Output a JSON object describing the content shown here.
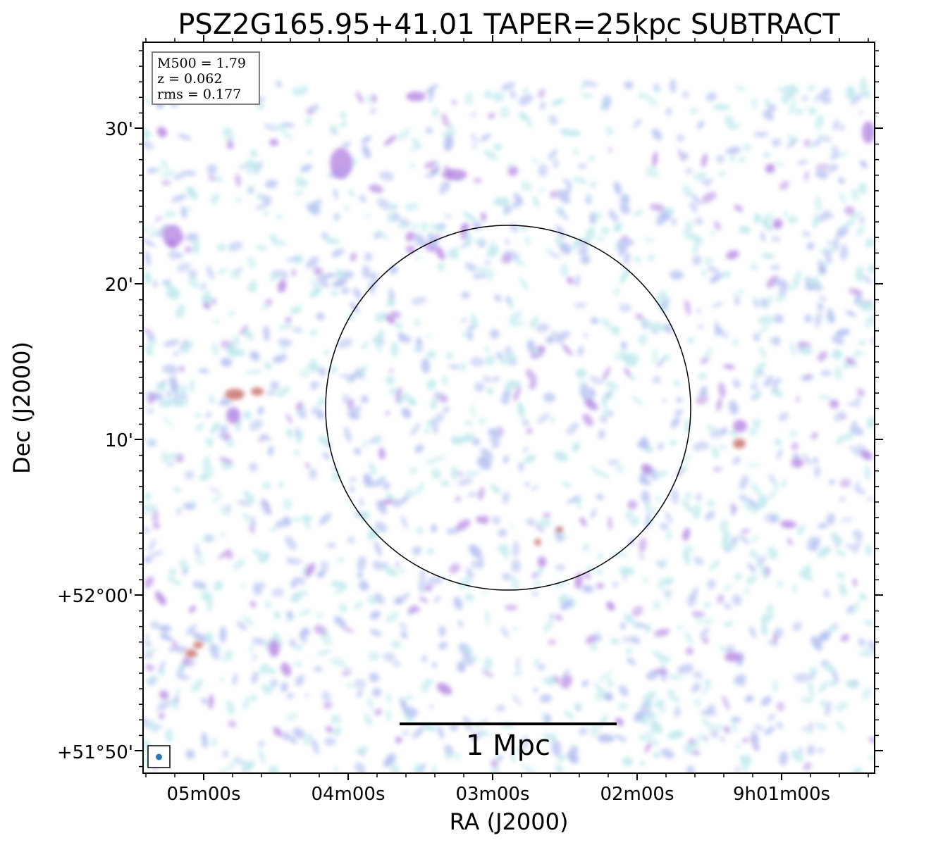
{
  "chart_data": {
    "type": "heatmap",
    "title": "PSZ2G165.95+41.01 TAPER=25kpc SUBTRACT",
    "xlabel": "RA (J2000)",
    "ylabel": "Dec (J2000)",
    "x_ticks": [
      "05m00s",
      "04m00s",
      "03m00s",
      "02m00s",
      "9h01m00s"
    ],
    "y_ticks": [
      "30'",
      "20'",
      "10'",
      "+52°00'",
      "+51°50'"
    ],
    "info": {
      "m500": "M500 = 1.79",
      "z": "z = 0.062",
      "rms": "rms = 0.177"
    },
    "scalebar_label": "1 Mpc",
    "colors": {
      "low": "#b6e6ea",
      "mid": "#aab8ee",
      "high": "#b07fe0",
      "peak": "#c0605a",
      "circle": "#000000",
      "beam": "#2a7ab8"
    },
    "grid": false
  }
}
